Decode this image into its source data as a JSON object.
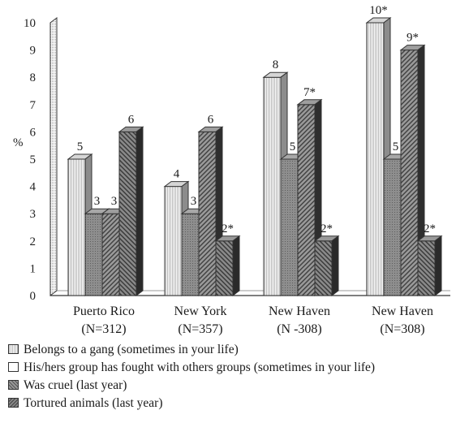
{
  "chart_data": {
    "type": "bar",
    "ylabel": "%",
    "ylim": [
      0,
      10
    ],
    "yticks": [
      "0",
      "1",
      "2",
      "3",
      "4",
      "5",
      "6",
      "7",
      "8",
      "9",
      "10"
    ],
    "categories": [
      {
        "name": "Puerto Rico",
        "n": "(N=312)"
      },
      {
        "name": "New York",
        "n": "(N=357)"
      },
      {
        "name": "New Haven",
        "n": "(N -308)"
      },
      {
        "name": "New Haven",
        "n": "(N=308)"
      }
    ],
    "series": [
      {
        "name": "Belongs to a gang (sometimes in your life)",
        "values": [
          5,
          4,
          8,
          10
        ],
        "labels": [
          "5",
          "4",
          "8",
          "10*"
        ]
      },
      {
        "name": "His/hers group has fought with others groups (sometimes in your life)",
        "values": [
          3,
          3,
          5,
          5
        ],
        "labels": [
          "3",
          "3",
          "5",
          "5"
        ]
      },
      {
        "name": "Was cruel (last year)",
        "values": [
          3,
          6,
          7,
          9
        ],
        "labels": [
          "3",
          "6",
          "7*",
          "9*"
        ]
      },
      {
        "name": "Tortured animals (last year)",
        "values": [
          6,
          2,
          2,
          2
        ],
        "labels": [
          "6",
          "2*",
          "2*",
          "2*"
        ]
      }
    ]
  },
  "legend": {
    "item1": "Belongs to a gang (sometimes in your life)",
    "item2": "His/hers group has fought with others groups (sometimes in your life)",
    "item3": "Was cruel (last year)",
    "item4": "Tortured animals (last year)"
  }
}
